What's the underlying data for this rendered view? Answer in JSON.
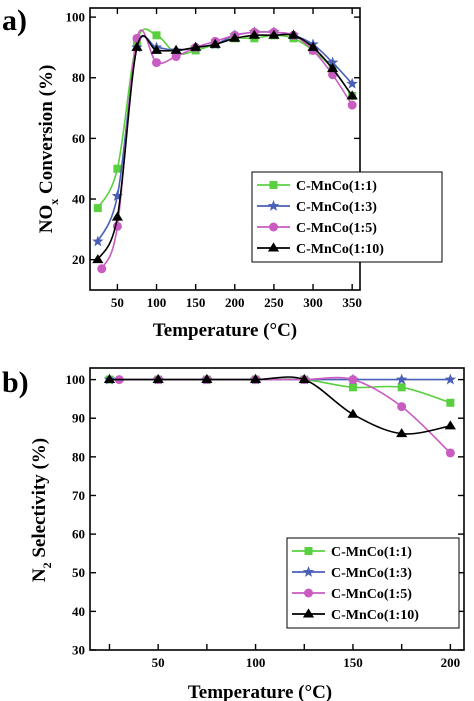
{
  "chart_data": [
    {
      "panel": "a)",
      "type": "line",
      "xlabel": "Temperature (°C)",
      "ylabel_main": "NO",
      "ylabel_sub": "x",
      "ylabel_rest": " Conversion (%)",
      "xlim": [
        15,
        360
      ],
      "ylim": [
        10,
        103
      ],
      "xticks": [
        50,
        100,
        150,
        200,
        250,
        300,
        350
      ],
      "yticks": [
        20,
        40,
        60,
        80,
        100
      ],
      "legend_position": "lower-right",
      "series": [
        {
          "name": "C-MnCo(1:1)",
          "color": "#5ad040",
          "marker": "square",
          "x": [
            25,
            50,
            75,
            100,
            125,
            150,
            175,
            200,
            225,
            250,
            275,
            300,
            325,
            350
          ],
          "y": [
            37,
            50,
            92,
            94,
            88,
            89,
            91,
            93,
            93,
            94,
            93,
            89,
            83,
            74
          ]
        },
        {
          "name": "C-MnCo(1:3)",
          "color": "#4a5fb8",
          "marker": "star",
          "x": [
            25,
            50,
            75,
            100,
            125,
            150,
            175,
            200,
            225,
            250,
            275,
            300,
            325,
            350
          ],
          "y": [
            26,
            41,
            90,
            90,
            89,
            90,
            91,
            94,
            95,
            95,
            94,
            91,
            85,
            78
          ]
        },
        {
          "name": "C-MnCo(1:5)",
          "color": "#c85cc0",
          "marker": "circle",
          "x": [
            30,
            50,
            75,
            100,
            125,
            150,
            175,
            200,
            225,
            250,
            275,
            300,
            325,
            350
          ],
          "y": [
            17,
            31,
            93,
            85,
            87,
            90,
            92,
            94,
            95,
            95,
            94,
            89,
            81,
            71
          ]
        },
        {
          "name": "C-MnCo(1:10)",
          "color": "#000000",
          "marker": "triangle",
          "x": [
            25,
            50,
            75,
            100,
            125,
            150,
            175,
            200,
            225,
            250,
            275,
            300,
            325,
            350
          ],
          "y": [
            20,
            34,
            90,
            89,
            89,
            90,
            91,
            93,
            94,
            94,
            94,
            90,
            83,
            74
          ]
        }
      ]
    },
    {
      "panel": "b)",
      "type": "line",
      "xlabel": "Temperature (°C)",
      "ylabel_main": "N",
      "ylabel_sub": "2",
      "ylabel_rest": " Selectivity (%)",
      "xlim": [
        15,
        207
      ],
      "ylim": [
        30,
        103
      ],
      "xticks": [
        50,
        100,
        150,
        200
      ],
      "xticks_bottom": [
        25,
        50,
        75,
        100,
        125,
        150,
        175,
        200
      ],
      "yticks": [
        30,
        40,
        50,
        60,
        70,
        80,
        90,
        100
      ],
      "legend_position": "lower-right",
      "series": [
        {
          "name": "C-MnCo(1:1)",
          "color": "#5ad040",
          "marker": "square",
          "x": [
            25,
            50,
            75,
            100,
            125,
            150,
            175,
            200
          ],
          "y": [
            100,
            100,
            100,
            100,
            100,
            98,
            98,
            94
          ]
        },
        {
          "name": "C-MnCo(1:3)",
          "color": "#4a5fb8",
          "marker": "star",
          "x": [
            25,
            50,
            75,
            100,
            125,
            150,
            175,
            200
          ],
          "y": [
            100,
            100,
            100,
            100,
            100,
            100,
            100,
            100
          ]
        },
        {
          "name": "C-MnCo(1:5)",
          "color": "#c85cc0",
          "marker": "circle",
          "x": [
            30,
            50,
            75,
            100,
            125,
            150,
            175,
            200
          ],
          "y": [
            100,
            100,
            100,
            100,
            100,
            100,
            93,
            81
          ]
        },
        {
          "name": "C-MnCo(1:10)",
          "color": "#000000",
          "marker": "triangle",
          "x": [
            25,
            50,
            75,
            100,
            125,
            150,
            175,
            200
          ],
          "y": [
            100,
            100,
            100,
            100,
            100,
            91,
            86,
            88
          ]
        }
      ]
    }
  ]
}
